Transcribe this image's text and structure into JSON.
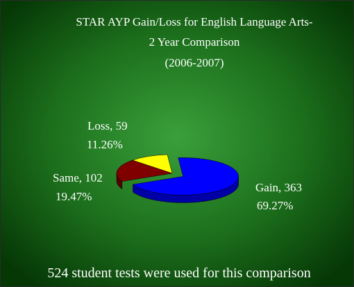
{
  "chart_data": {
    "type": "pie3d",
    "title": [
      "STAR AYP Gain/Loss for English Language Arts-",
      "2 Year Comparison",
      "(2006-2007)"
    ],
    "values": [
      363,
      102,
      59
    ],
    "value_labels": [
      "Gain, 363",
      "Same, 102",
      "Loss, 59"
    ],
    "percent_labels": [
      "69.27%",
      "19.47%",
      "11.26%"
    ],
    "colors": [
      "#0000ff",
      "#800000",
      "#ffff00"
    ],
    "footnote": "524 student tests were used for this comparison"
  }
}
